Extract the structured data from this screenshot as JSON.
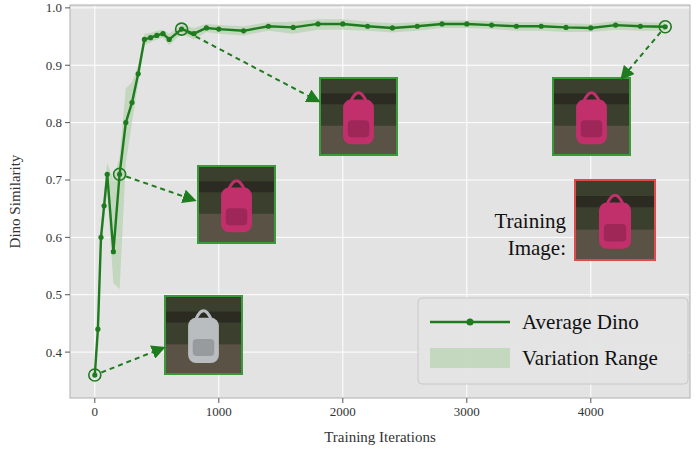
{
  "chart_data": {
    "type": "line",
    "x_label": "Training Iterations",
    "y_label": "Dino Similarity",
    "x": [
      0,
      25,
      50,
      75,
      100,
      150,
      200,
      250,
      300,
      350,
      400,
      450,
      500,
      550,
      600,
      700,
      800,
      900,
      1000,
      1200,
      1400,
      1600,
      1800,
      2000,
      2200,
      2400,
      2600,
      2800,
      3000,
      3200,
      3400,
      3600,
      3800,
      4000,
      4200,
      4400,
      4600
    ],
    "series": [
      {
        "name": "Average Dino",
        "color": "#1e7b1e",
        "marker": "circle",
        "line_style": "solid",
        "values": [
          0.36,
          0.44,
          0.6,
          0.655,
          0.71,
          0.575,
          0.71,
          0.8,
          0.835,
          0.885,
          0.945,
          0.948,
          0.952,
          0.955,
          0.945,
          0.963,
          0.955,
          0.965,
          0.963,
          0.96,
          0.968,
          0.966,
          0.972,
          0.972,
          0.968,
          0.965,
          0.968,
          0.972,
          0.972,
          0.97,
          0.968,
          0.968,
          0.966,
          0.965,
          0.97,
          0.968,
          0.967
        ]
      },
      {
        "name": "Variation Range",
        "type": "area",
        "color": "#a9cca0",
        "low": [
          0.355,
          0.43,
          0.58,
          0.63,
          0.68,
          0.52,
          0.51,
          0.73,
          0.8,
          0.87,
          0.935,
          0.94,
          0.945,
          0.948,
          0.935,
          0.955,
          0.945,
          0.958,
          0.955,
          0.952,
          0.96,
          0.955,
          0.962,
          0.962,
          0.96,
          0.957,
          0.96,
          0.965,
          0.965,
          0.963,
          0.96,
          0.96,
          0.958,
          0.958,
          0.962,
          0.96,
          0.96
        ],
        "high": [
          0.365,
          0.46,
          0.62,
          0.68,
          0.73,
          0.7,
          0.74,
          0.86,
          0.87,
          0.9,
          0.955,
          0.956,
          0.96,
          0.962,
          0.955,
          0.97,
          0.965,
          0.972,
          0.97,
          0.968,
          0.975,
          0.976,
          0.98,
          0.98,
          0.976,
          0.973,
          0.975,
          0.978,
          0.978,
          0.977,
          0.975,
          0.975,
          0.973,
          0.972,
          0.977,
          0.975,
          0.974
        ]
      }
    ],
    "highlighted_x": [
      0,
      200,
      700,
      4600
    ],
    "annotations": [
      {
        "text": "Training Image:"
      }
    ],
    "xlim": [
      -200,
      4800
    ],
    "ylim": [
      0.32,
      1.005
    ],
    "xticks": [
      0,
      1000,
      2000,
      3000,
      4000
    ],
    "yticks": [
      0.4,
      0.5,
      0.6,
      0.7,
      0.8,
      0.9,
      {
        "value": 1,
        "label": "1.0"
      }
    ],
    "grid": true,
    "legend": "lower right"
  }
}
